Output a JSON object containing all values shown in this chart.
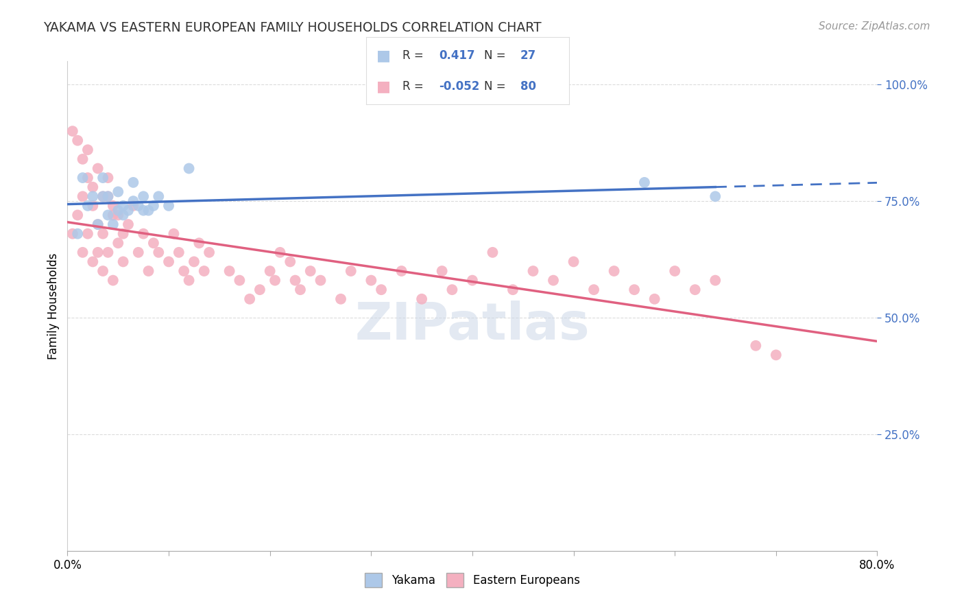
{
  "title": "YAKAMA VS EASTERN EUROPEAN FAMILY HOUSEHOLDS CORRELATION CHART",
  "source": "Source: ZipAtlas.com",
  "ylabel": "Family Households",
  "yakama_R": 0.417,
  "yakama_N": 27,
  "eastern_R": -0.052,
  "eastern_N": 80,
  "yakama_color": "#adc8e8",
  "eastern_color": "#f4b0c0",
  "yakama_line_color": "#4472c4",
  "eastern_line_color": "#e06080",
  "background_color": "#ffffff",
  "yakama_x": [
    0.01,
    0.015,
    0.02,
    0.025,
    0.03,
    0.035,
    0.035,
    0.04,
    0.04,
    0.045,
    0.05,
    0.05,
    0.055,
    0.055,
    0.06,
    0.065,
    0.065,
    0.07,
    0.075,
    0.075,
    0.08,
    0.085,
    0.09,
    0.1,
    0.12,
    0.57,
    0.64
  ],
  "yakama_y": [
    0.68,
    0.8,
    0.74,
    0.76,
    0.7,
    0.76,
    0.8,
    0.72,
    0.76,
    0.7,
    0.73,
    0.77,
    0.72,
    0.74,
    0.73,
    0.75,
    0.79,
    0.74,
    0.73,
    0.76,
    0.73,
    0.74,
    0.76,
    0.74,
    0.82,
    0.79,
    0.76
  ],
  "eastern_x": [
    0.005,
    0.01,
    0.015,
    0.015,
    0.02,
    0.02,
    0.025,
    0.025,
    0.03,
    0.03,
    0.035,
    0.035,
    0.04,
    0.04,
    0.045,
    0.045,
    0.05,
    0.055,
    0.055,
    0.06,
    0.065,
    0.07,
    0.075,
    0.08,
    0.085,
    0.09,
    0.1,
    0.105,
    0.11,
    0.115,
    0.12,
    0.125,
    0.13,
    0.135,
    0.14,
    0.16,
    0.17,
    0.18,
    0.19,
    0.2,
    0.205,
    0.21,
    0.22,
    0.225,
    0.23,
    0.24,
    0.25,
    0.27,
    0.28,
    0.3,
    0.31,
    0.33,
    0.35,
    0.37,
    0.38,
    0.4,
    0.42,
    0.44,
    0.46,
    0.48,
    0.5,
    0.52,
    0.54,
    0.56,
    0.58,
    0.6,
    0.62,
    0.64,
    0.68,
    0.7,
    0.005,
    0.01,
    0.015,
    0.02,
    0.025,
    0.03,
    0.035,
    0.04,
    0.045,
    0.05
  ],
  "eastern_y": [
    0.68,
    0.72,
    0.64,
    0.76,
    0.68,
    0.8,
    0.62,
    0.74,
    0.64,
    0.7,
    0.6,
    0.68,
    0.64,
    0.76,
    0.58,
    0.72,
    0.66,
    0.62,
    0.68,
    0.7,
    0.74,
    0.64,
    0.68,
    0.6,
    0.66,
    0.64,
    0.62,
    0.68,
    0.64,
    0.6,
    0.58,
    0.62,
    0.66,
    0.6,
    0.64,
    0.6,
    0.58,
    0.54,
    0.56,
    0.6,
    0.58,
    0.64,
    0.62,
    0.58,
    0.56,
    0.6,
    0.58,
    0.54,
    0.6,
    0.58,
    0.56,
    0.6,
    0.54,
    0.6,
    0.56,
    0.58,
    0.64,
    0.56,
    0.6,
    0.58,
    0.62,
    0.56,
    0.6,
    0.56,
    0.54,
    0.6,
    0.56,
    0.58,
    0.44,
    0.42,
    0.9,
    0.88,
    0.84,
    0.86,
    0.78,
    0.82,
    0.76,
    0.8,
    0.74,
    0.72
  ],
  "xlim": [
    0.0,
    0.8
  ],
  "ylim": [
    0.0,
    1.05
  ],
  "yticks": [
    0.25,
    0.5,
    0.75,
    1.0
  ],
  "ytick_labels": [
    "25.0%",
    "50.0%",
    "75.0%",
    "100.0%"
  ],
  "xtick_positions": [
    0.0,
    0.1,
    0.2,
    0.3,
    0.4,
    0.5,
    0.6,
    0.7,
    0.8
  ],
  "xtick_labels_show": [
    "0.0%",
    "",
    "",
    "",
    "",
    "",
    "",
    "",
    "80.0%"
  ]
}
